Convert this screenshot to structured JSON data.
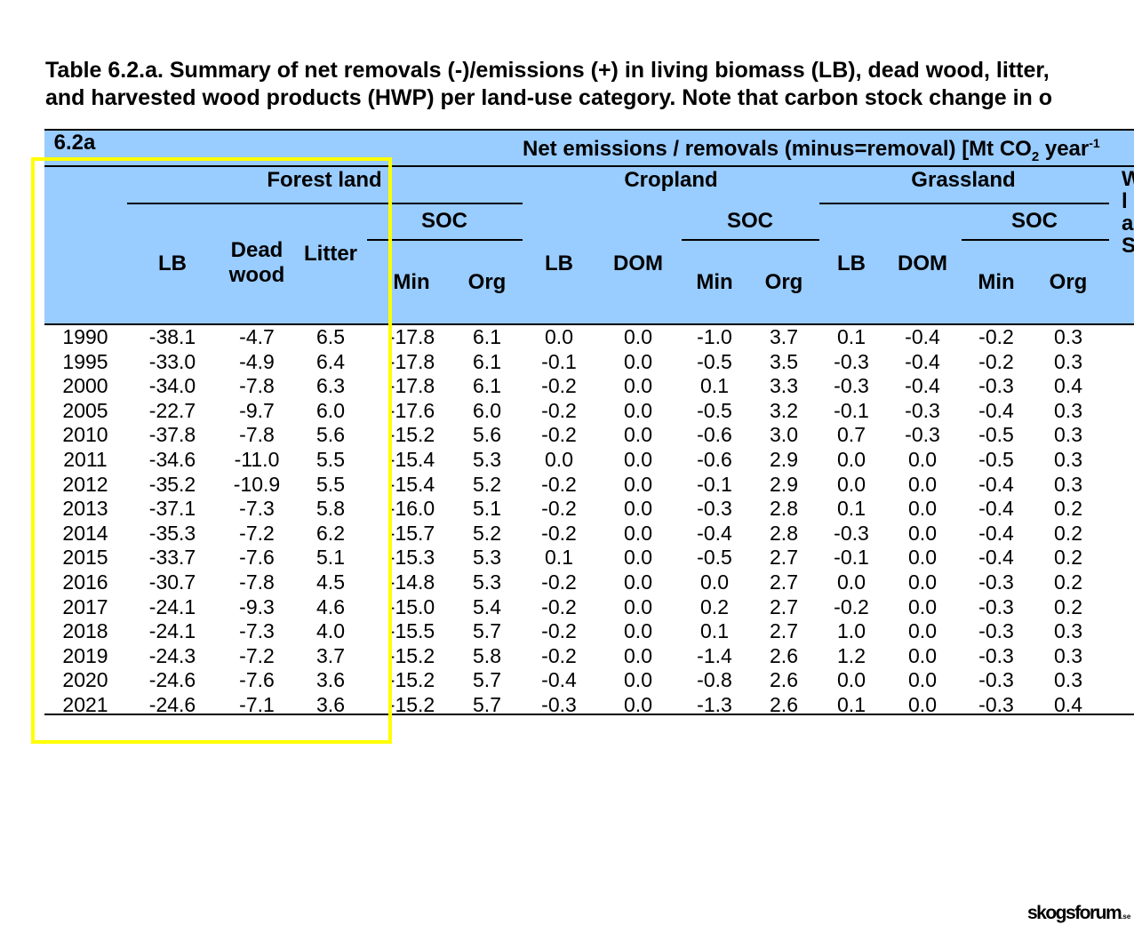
{
  "title": [
    "Table 6.2.a. Summary of net removals (-)/emissions (+) in living biomass (LB), dead wood, litter,",
    "and harvested wood products (HWP) per land-use category. Note that carbon stock change in o"
  ],
  "header": {
    "table_id": "6.2a",
    "unit_label": "Net emissions / removals (minus=removal) [Mt CO",
    "unit_sub": "2",
    "unit_tail": " year",
    "unit_sup": "-1",
    "groups": {
      "forest": "Forest land",
      "cropland": "Cropland",
      "grassland": "Grassland",
      "wetland": "W la S"
    },
    "soc": "SOC",
    "columns": [
      "LB",
      "Dead wood",
      "Litter",
      "Min",
      "Org",
      "LB",
      "DOM",
      "Min",
      "Org",
      "LB",
      "DOM",
      "Min",
      "Org"
    ]
  },
  "rows": [
    [
      "1990",
      "-38.1",
      "-4.7",
      "6.5",
      "-17.8",
      "6.1",
      "0.0",
      "0.0",
      "-1.0",
      "3.7",
      "0.1",
      "-0.4",
      "-0.2",
      "0.3"
    ],
    [
      "1995",
      "-33.0",
      "-4.9",
      "6.4",
      "-17.8",
      "6.1",
      "-0.1",
      "0.0",
      "-0.5",
      "3.5",
      "-0.3",
      "-0.4",
      "-0.2",
      "0.3"
    ],
    [
      "2000",
      "-34.0",
      "-7.8",
      "6.3",
      "-17.8",
      "6.1",
      "-0.2",
      "0.0",
      "0.1",
      "3.3",
      "-0.3",
      "-0.4",
      "-0.3",
      "0.4"
    ],
    [
      "2005",
      "-22.7",
      "-9.7",
      "6.0",
      "-17.6",
      "6.0",
      "-0.2",
      "0.0",
      "-0.5",
      "3.2",
      "-0.1",
      "-0.3",
      "-0.4",
      "0.3"
    ],
    [
      "2010",
      "-37.8",
      "-7.8",
      "5.6",
      "-15.2",
      "5.6",
      "-0.2",
      "0.0",
      "-0.6",
      "3.0",
      "0.7",
      "-0.3",
      "-0.5",
      "0.3"
    ],
    [
      "2011",
      "-34.6",
      "-11.0",
      "5.5",
      "-15.4",
      "5.3",
      "0.0",
      "0.0",
      "-0.6",
      "2.9",
      "0.0",
      "0.0",
      "-0.5",
      "0.3"
    ],
    [
      "2012",
      "-35.2",
      "-10.9",
      "5.5",
      "-15.4",
      "5.2",
      "-0.2",
      "0.0",
      "-0.1",
      "2.9",
      "0.0",
      "0.0",
      "-0.4",
      "0.3"
    ],
    [
      "2013",
      "-37.1",
      "-7.3",
      "5.8",
      "-16.0",
      "5.1",
      "-0.2",
      "0.0",
      "-0.3",
      "2.8",
      "0.1",
      "0.0",
      "-0.4",
      "0.2"
    ],
    [
      "2014",
      "-35.3",
      "-7.2",
      "6.2",
      "-15.7",
      "5.2",
      "-0.2",
      "0.0",
      "-0.4",
      "2.8",
      "-0.3",
      "0.0",
      "-0.4",
      "0.2"
    ],
    [
      "2015",
      "-33.7",
      "-7.6",
      "5.1",
      "-15.3",
      "5.3",
      "0.1",
      "0.0",
      "-0.5",
      "2.7",
      "-0.1",
      "0.0",
      "-0.4",
      "0.2"
    ],
    [
      "2016",
      "-30.7",
      "-7.8",
      "4.5",
      "-14.8",
      "5.3",
      "-0.2",
      "0.0",
      "0.0",
      "2.7",
      "0.0",
      "0.0",
      "-0.3",
      "0.2"
    ],
    [
      "2017",
      "-24.1",
      "-9.3",
      "4.6",
      "-15.0",
      "5.4",
      "-0.2",
      "0.0",
      "0.2",
      "2.7",
      "-0.2",
      "0.0",
      "-0.3",
      "0.2"
    ],
    [
      "2018",
      "-24.1",
      "-7.3",
      "4.0",
      "-15.5",
      "5.7",
      "-0.2",
      "0.0",
      "0.1",
      "2.7",
      "1.0",
      "0.0",
      "-0.3",
      "0.3"
    ],
    [
      "2019",
      "-24.3",
      "-7.2",
      "3.7",
      "-15.2",
      "5.8",
      "-0.2",
      "0.0",
      "-1.4",
      "2.6",
      "1.2",
      "0.0",
      "-0.3",
      "0.3"
    ],
    [
      "2020",
      "-24.6",
      "-7.6",
      "3.6",
      "-15.2",
      "5.7",
      "-0.4",
      "0.0",
      "-0.8",
      "2.6",
      "0.0",
      "0.0",
      "-0.3",
      "0.3"
    ],
    [
      "2021",
      "-24.6",
      "-7.1",
      "3.6",
      "-15.2",
      "5.7",
      "-0.3",
      "0.0",
      "-1.3",
      "2.6",
      "0.1",
      "0.0",
      "-0.3",
      "0.4"
    ]
  ],
  "highlight_color": "#ffff00",
  "header_bg": "#99ccff",
  "logo": {
    "text": "skogsforum",
    "suffix": ".se"
  }
}
